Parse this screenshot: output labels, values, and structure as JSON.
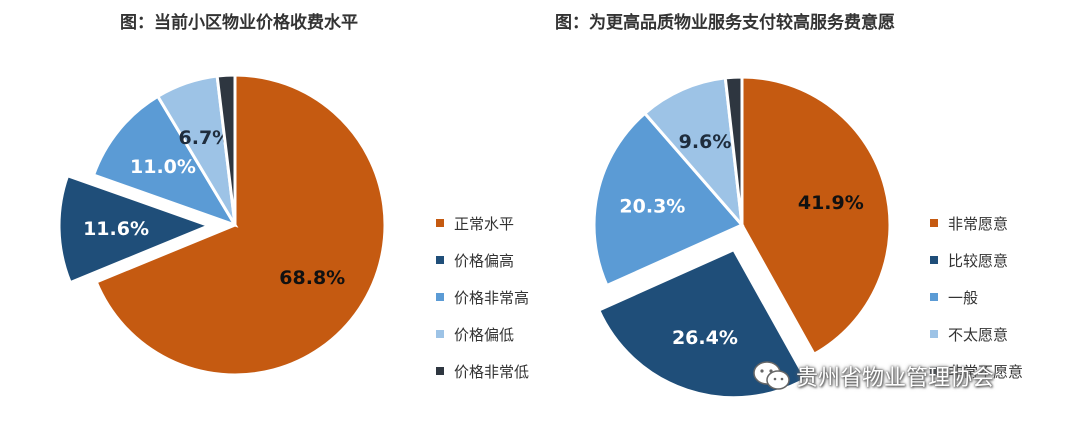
{
  "chart_data": [
    {
      "type": "pie",
      "title": "图：当前小区物业价格收费水平",
      "slices": [
        {
          "label": "正常水平",
          "value": 68.8,
          "value_label": "68.8%",
          "color": "#C55A11",
          "exploded": false
        },
        {
          "label": "价格偏高",
          "value": 11.6,
          "value_label": "11.6%",
          "color": "#1F4E79",
          "exploded": true
        },
        {
          "label": "价格非常高",
          "value": 11.0,
          "value_label": "11.0%",
          "color": "#5B9BD5",
          "exploded": false
        },
        {
          "label": "价格偏低",
          "value": 6.7,
          "value_label": "6.7%",
          "color": "#9DC3E6",
          "exploded": false
        },
        {
          "label": "价格非常低",
          "value": 1.9,
          "value_label": "",
          "color": "#2E3640",
          "exploded": false
        }
      ],
      "legend_position": "right"
    },
    {
      "type": "pie",
      "title": "图：为更高品质物业服务支付较高服务费意愿",
      "slices": [
        {
          "label": "非常愿意",
          "value": 41.9,
          "value_label": "41.9%",
          "color": "#C55A11",
          "exploded": false
        },
        {
          "label": "比较愿意",
          "value": 26.4,
          "value_label": "26.4%",
          "color": "#1F4E79",
          "exploded": true
        },
        {
          "label": "一般",
          "value": 20.3,
          "value_label": "20.3%",
          "color": "#5B9BD5",
          "exploded": false
        },
        {
          "label": "不太愿意",
          "value": 9.6,
          "value_label": "9.6%",
          "color": "#9DC3E6",
          "exploded": false
        },
        {
          "label": "非常不愿意",
          "value": 1.8,
          "value_label": "",
          "color": "#2E3640",
          "exploded": false
        }
      ],
      "legend_position": "right"
    }
  ],
  "watermark": {
    "text": "贵州省物业管理协会",
    "icon": "wechat-icon"
  }
}
